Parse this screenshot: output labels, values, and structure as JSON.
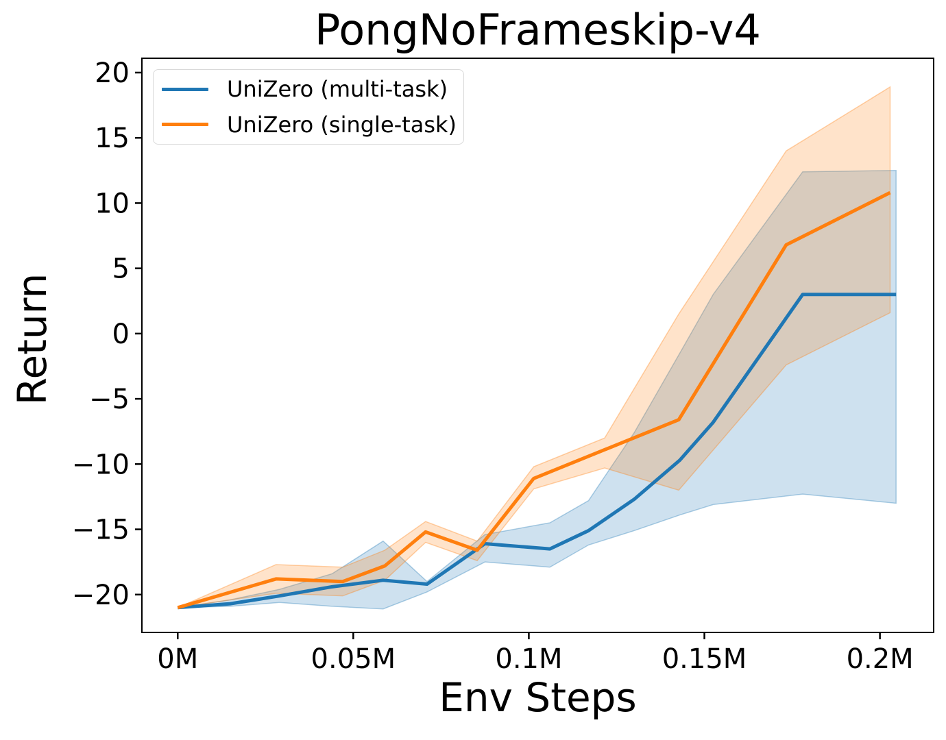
{
  "chart_data": {
    "type": "line",
    "title": "PongNoFrameskip-v4",
    "xlabel": "Env Steps",
    "ylabel": "Return",
    "x_unit": "millions of env steps",
    "grid": false,
    "legend_position": "upper left",
    "xlim": [
      -0.0102,
      0.2153
    ],
    "ylim": [
      -22.9,
      21.1
    ],
    "x_ticks": {
      "values": [
        0,
        0.05,
        0.1,
        0.15,
        0.2
      ],
      "labels": [
        "0M",
        "0.05M",
        "0.1M",
        "0.15M",
        "0.2M"
      ]
    },
    "y_ticks": {
      "values": [
        20,
        15,
        10,
        5,
        0,
        -5,
        -10,
        -15,
        -20
      ],
      "labels": [
        "20",
        "15",
        "10",
        "5",
        "0",
        "−5",
        "−10",
        "−15",
        "−20"
      ]
    },
    "series": [
      {
        "name": "UniZero (multi-task)",
        "color": "#1f77b4",
        "x": [
          0.0,
          0.015,
          0.029,
          0.044,
          0.0585,
          0.071,
          0.0875,
          0.106,
          0.117,
          0.13,
          0.143,
          0.1525,
          0.178,
          0.2046
        ],
        "mean": [
          -21.0,
          -20.7,
          -20.1,
          -19.4,
          -18.9,
          -19.2,
          -16.1,
          -16.5,
          -15.1,
          -12.7,
          -9.7,
          -6.8,
          3.0,
          3.0
        ],
        "band_upper": [
          -21.0,
          -20.4,
          -19.6,
          -18.4,
          -15.9,
          -19.0,
          -15.4,
          -14.5,
          -12.8,
          -7.6,
          -1.5,
          3.0,
          12.4,
          12.5
        ],
        "band_lower": [
          -21.0,
          -20.9,
          -20.6,
          -20.9,
          -21.1,
          -19.8,
          -17.5,
          -17.9,
          -16.2,
          -15.1,
          -13.9,
          -13.1,
          -12.3,
          -13.0
        ]
      },
      {
        "name": "UniZero (single-task)",
        "color": "#ff7f0e",
        "x": [
          0.0,
          0.028,
          0.047,
          0.059,
          0.0706,
          0.0853,
          0.1014,
          0.1216,
          0.1427,
          0.1733,
          0.2029
        ],
        "mean": [
          -21.0,
          -18.8,
          -19.0,
          -17.8,
          -15.2,
          -16.6,
          -11.1,
          -8.9,
          -6.6,
          6.8,
          10.8
        ],
        "band_upper": [
          -21.0,
          -17.7,
          -17.9,
          -16.6,
          -14.4,
          -15.9,
          -10.2,
          -8.0,
          1.5,
          14.0,
          18.9
        ],
        "band_lower": [
          -21.0,
          -19.9,
          -20.1,
          -18.9,
          -16.0,
          -17.4,
          -11.9,
          -10.3,
          -12.0,
          -2.4,
          1.6
        ]
      }
    ],
    "style": {
      "line_width": 5,
      "band_fill_opacity": 0.22,
      "band_edge_opacity": 0.35,
      "spine_color": "#000000",
      "background": "#ffffff"
    }
  }
}
